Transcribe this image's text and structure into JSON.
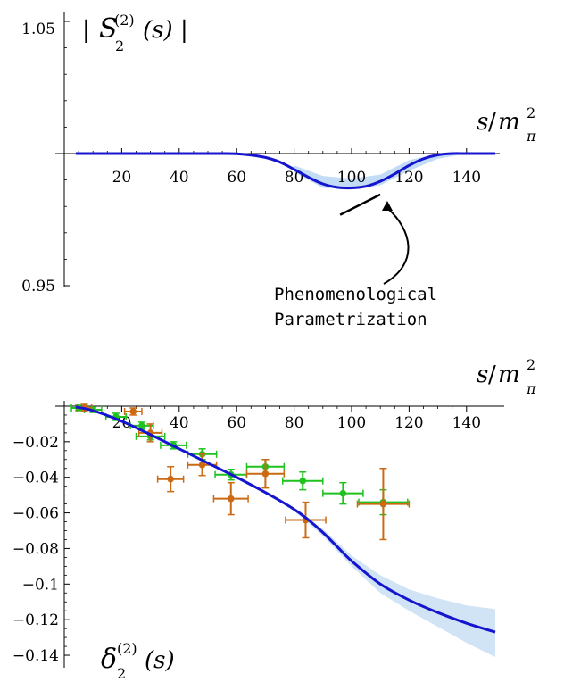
{
  "chart_data": [
    {
      "type": "line",
      "title_parts": {
        "open": "|",
        "S": "S",
        "sup": "(2)",
        "sub": "2",
        "arg": "(s)",
        "close": "|"
      },
      "xlabel_parts": {
        "s": "s",
        "slash": "/",
        "m": "m",
        "sup": "2",
        "sub": "π"
      },
      "xlim": [
        0,
        150
      ],
      "ylim": [
        0.95,
        1.05
      ],
      "axis_crossing_y": 1.0,
      "x_ticks": [
        "20",
        "40",
        "60",
        "80",
        "100",
        "120",
        "140"
      ],
      "y_tick_labels": [
        {
          "value": 1.05,
          "label": "1.05"
        },
        {
          "value": 0.95,
          "label": "0.95"
        }
      ],
      "series": [
        {
          "color": "#1515d0",
          "x": [
            4,
            20,
            40,
            55,
            60,
            65,
            70,
            75,
            80,
            85,
            90,
            95,
            100,
            105,
            110,
            115,
            120,
            125,
            130,
            135,
            140,
            150
          ],
          "y": [
            1.0,
            1.0,
            1.0,
            1.0,
            0.9999,
            0.9994,
            0.9985,
            0.9968,
            0.994,
            0.991,
            0.9885,
            0.9872,
            0.987,
            0.9876,
            0.9895,
            0.9923,
            0.9955,
            0.998,
            0.9995,
            1.0,
            1.0,
            1.0
          ]
        }
      ],
      "band": {
        "color": "#a9cdf2",
        "x": [
          80,
          90,
          100,
          110,
          120,
          130,
          140
        ],
        "lo": [
          0.993,
          0.987,
          0.9865,
          0.988,
          0.9935,
          0.998,
          1.0
        ],
        "hi": [
          0.9955,
          0.9915,
          0.9905,
          0.992,
          0.9975,
          1.0,
          1.0
        ]
      },
      "annotation": {
        "lines": [
          "Phenomenological",
          "Parametrization"
        ],
        "arrow_from": [
          96,
          0.9768
        ],
        "arrow_to": [
          110,
          0.9845
        ]
      }
    },
    {
      "type": "scatter",
      "ylabel_parts": {
        "delta": "δ",
        "sup": "(2)",
        "sub": "2",
        "arg": "(s)"
      },
      "xlabel_parts": {
        "s": "s",
        "slash": "/",
        "m": "m",
        "sup": "2",
        "sub": "π"
      },
      "xlim": [
        0,
        150
      ],
      "ylim": [
        -0.145,
        0.003
      ],
      "x_ticks": [
        "20",
        "40",
        "60",
        "80",
        "100",
        "120",
        "140"
      ],
      "y_ticks": [
        {
          "value": -0.02,
          "label": "−0.02"
        },
        {
          "value": -0.04,
          "label": "−0.04"
        },
        {
          "value": -0.06,
          "label": "−0.06"
        },
        {
          "value": -0.08,
          "label": "−0.08"
        },
        {
          "value": -0.1,
          "label": "−0.1"
        },
        {
          "value": -0.12,
          "label": "−0.12"
        },
        {
          "value": -0.14,
          "label": "−0.14"
        }
      ],
      "curve": {
        "color": "#1515d0",
        "x": [
          4,
          10,
          20,
          30,
          40,
          50,
          60,
          70,
          80,
          85,
          90,
          95,
          100,
          110,
          120,
          130,
          140,
          150
        ],
        "y": [
          -0.0005,
          -0.0025,
          -0.0085,
          -0.016,
          -0.024,
          -0.032,
          -0.04,
          -0.0485,
          -0.058,
          -0.064,
          -0.071,
          -0.079,
          -0.087,
          -0.1,
          -0.109,
          -0.116,
          -0.122,
          -0.127
        ]
      },
      "band": {
        "color": "#c5ddf4",
        "x": [
          80,
          90,
          100,
          110,
          120,
          130,
          140,
          150
        ],
        "lo": [
          -0.059,
          -0.073,
          -0.09,
          -0.105,
          -0.115,
          -0.124,
          -0.133,
          -0.141
        ],
        "hi": [
          -0.057,
          -0.069,
          -0.084,
          -0.095,
          -0.103,
          -0.108,
          -0.112,
          -0.114
        ]
      },
      "data_series": [
        {
          "color": "#1fc21f",
          "points": [
            {
              "x": 5,
              "y": -0.001,
              "xerr": 2.5,
              "yerr": 0.0015
            },
            {
              "x": 10,
              "y": -0.002,
              "xerr": 3,
              "yerr": 0.0015
            },
            {
              "x": 18,
              "y": -0.006,
              "xerr": 3.5,
              "yerr": 0.002
            },
            {
              "x": 27,
              "y": -0.011,
              "xerr": 4,
              "yerr": 0.002
            },
            {
              "x": 30,
              "y": -0.017,
              "xerr": 5,
              "yerr": 0.002
            },
            {
              "x": 38,
              "y": -0.022,
              "xerr": 4.5,
              "yerr": 0.002
            },
            {
              "x": 48,
              "y": -0.027,
              "xerr": 5,
              "yerr": 0.003
            },
            {
              "x": 58,
              "y": -0.0385,
              "xerr": 5.5,
              "yerr": 0.003
            },
            {
              "x": 70,
              "y": -0.034,
              "xerr": 6.5,
              "yerr": 0.004
            },
            {
              "x": 83,
              "y": -0.042,
              "xerr": 7,
              "yerr": 0.005
            },
            {
              "x": 97,
              "y": -0.049,
              "xerr": 7,
              "yerr": 0.006
            },
            {
              "x": 111,
              "y": -0.054,
              "xerr": 8.5,
              "yerr": 0.007
            }
          ]
        },
        {
          "color": "#cc6a14",
          "points": [
            {
              "x": 7,
              "y": -0.001,
              "xerr": 2.5,
              "yerr": 0.002
            },
            {
              "x": 24,
              "y": -0.003,
              "xerr": 3,
              "yerr": 0.002
            },
            {
              "x": 30,
              "y": -0.015,
              "xerr": 4,
              "yerr": 0.005
            },
            {
              "x": 37,
              "y": -0.041,
              "xerr": 4.5,
              "yerr": 0.007
            },
            {
              "x": 48,
              "y": -0.033,
              "xerr": 5,
              "yerr": 0.006
            },
            {
              "x": 58,
              "y": -0.052,
              "xerr": 6,
              "yerr": 0.009
            },
            {
              "x": 70,
              "y": -0.038,
              "xerr": 6.5,
              "yerr": 0.008
            },
            {
              "x": 84,
              "y": -0.064,
              "xerr": 7,
              "yerr": 0.01
            },
            {
              "x": 111,
              "y": -0.055,
              "xerr": 9,
              "yerr": 0.02
            }
          ]
        }
      ]
    }
  ]
}
